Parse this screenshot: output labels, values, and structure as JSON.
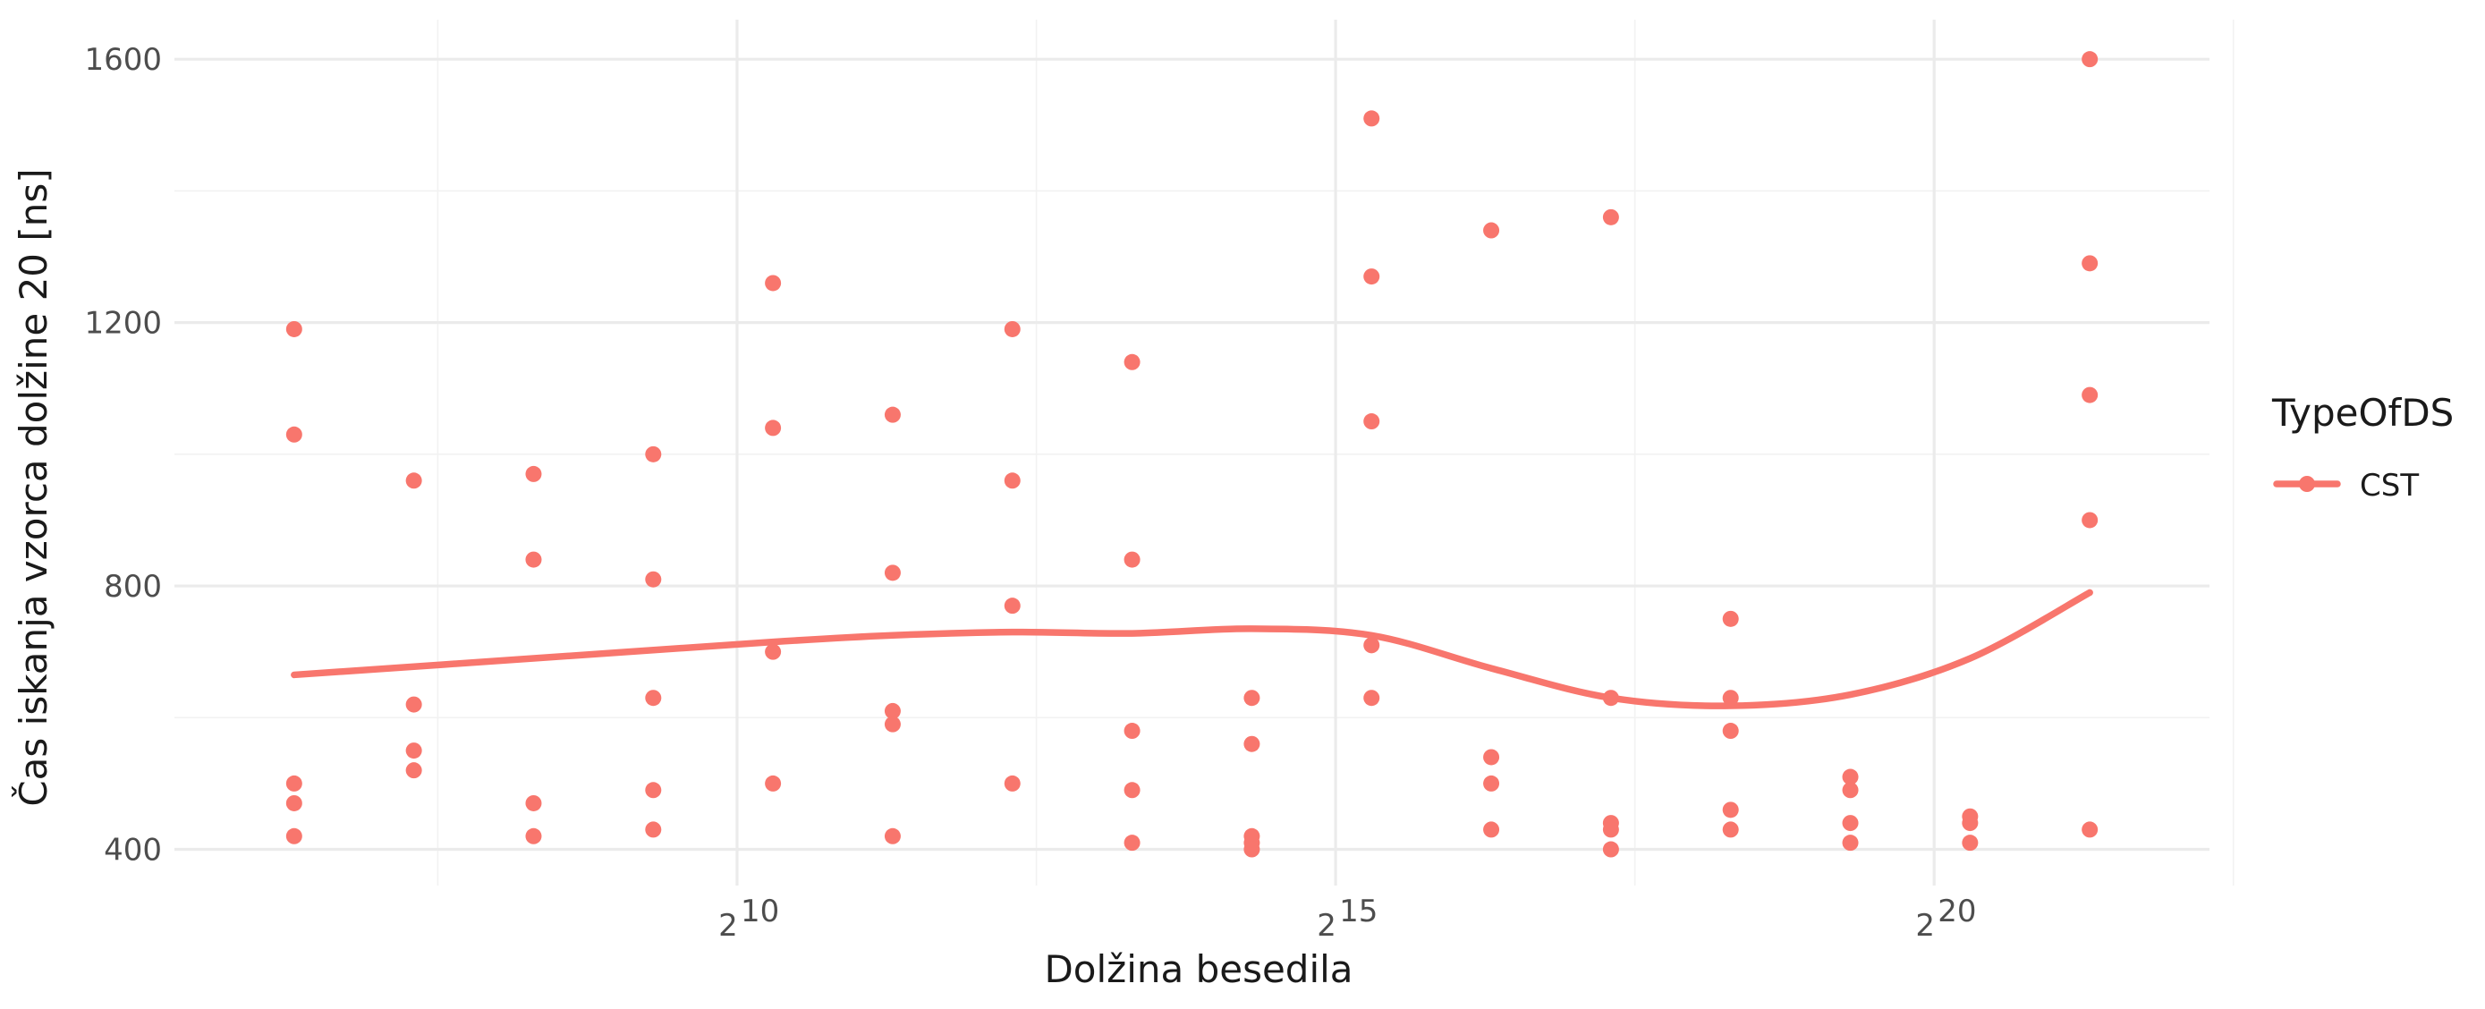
{
  "chart_data": {
    "type": "scatter",
    "title": "",
    "xlabel": "Dolžina besedila",
    "ylabel": "Čas iskanja vzorca dolžine 20 [ns]",
    "x_scale": "log2",
    "x_ticks": [
      {
        "exp": 10,
        "base": "2",
        "sup": "10"
      },
      {
        "exp": 15,
        "base": "2",
        "sup": "15"
      },
      {
        "exp": 20,
        "base": "2",
        "sup": "20"
      }
    ],
    "y_ticks": [
      400,
      800,
      1200,
      1600
    ],
    "xlim_log2": [
      5.3,
      22.3
    ],
    "ylim": [
      345,
      1660
    ],
    "grid": true,
    "legend": {
      "title": "TypeOfDS",
      "position": "right",
      "entries": [
        "CST"
      ]
    },
    "colors": {
      "CST": "#F8766D"
    },
    "series": [
      {
        "name": "CST",
        "points": [
          {
            "log2x": 6.3,
            "ys": [
              1190,
              1030,
              500,
              470,
              420
            ]
          },
          {
            "log2x": 7.3,
            "ys": [
              960,
              620,
              550,
              520
            ]
          },
          {
            "log2x": 8.3,
            "ys": [
              970,
              840,
              470,
              420
            ]
          },
          {
            "log2x": 9.3,
            "ys": [
              1000,
              810,
              630,
              490,
              430
            ]
          },
          {
            "log2x": 10.3,
            "ys": [
              1260,
              1040,
              700,
              500
            ]
          },
          {
            "log2x": 11.3,
            "ys": [
              1060,
              820,
              610,
              590,
              420
            ]
          },
          {
            "log2x": 12.3,
            "ys": [
              1190,
              960,
              770,
              500
            ]
          },
          {
            "log2x": 13.3,
            "ys": [
              1140,
              840,
              580,
              490,
              410
            ]
          },
          {
            "log2x": 14.3,
            "ys": [
              630,
              560,
              420,
              410,
              400
            ]
          },
          {
            "log2x": 15.3,
            "ys": [
              1510,
              1270,
              1050,
              710,
              630
            ]
          },
          {
            "log2x": 16.3,
            "ys": [
              1340,
              540,
              500,
              430
            ]
          },
          {
            "log2x": 17.3,
            "ys": [
              1360,
              630,
              440,
              430,
              400
            ]
          },
          {
            "log2x": 18.3,
            "ys": [
              750,
              630,
              580,
              460,
              430
            ]
          },
          {
            "log2x": 19.3,
            "ys": [
              510,
              490,
              440,
              410
            ]
          },
          {
            "log2x": 20.3,
            "ys": [
              450,
              440,
              410
            ]
          },
          {
            "log2x": 21.3,
            "ys": [
              1600,
              1290,
              1090,
              900,
              430
            ]
          }
        ],
        "smooth": [
          {
            "log2x": 6.3,
            "y": 665
          },
          {
            "log2x": 8.3,
            "y": 690
          },
          {
            "log2x": 10.3,
            "y": 715
          },
          {
            "log2x": 11.3,
            "y": 725
          },
          {
            "log2x": 12.3,
            "y": 730
          },
          {
            "log2x": 13.3,
            "y": 728
          },
          {
            "log2x": 14.3,
            "y": 735
          },
          {
            "log2x": 15.3,
            "y": 725
          },
          {
            "log2x": 16.3,
            "y": 675
          },
          {
            "log2x": 17.3,
            "y": 630
          },
          {
            "log2x": 18.3,
            "y": 618
          },
          {
            "log2x": 19.3,
            "y": 635
          },
          {
            "log2x": 20.3,
            "y": 690
          },
          {
            "log2x": 21.3,
            "y": 790
          }
        ]
      }
    ]
  }
}
